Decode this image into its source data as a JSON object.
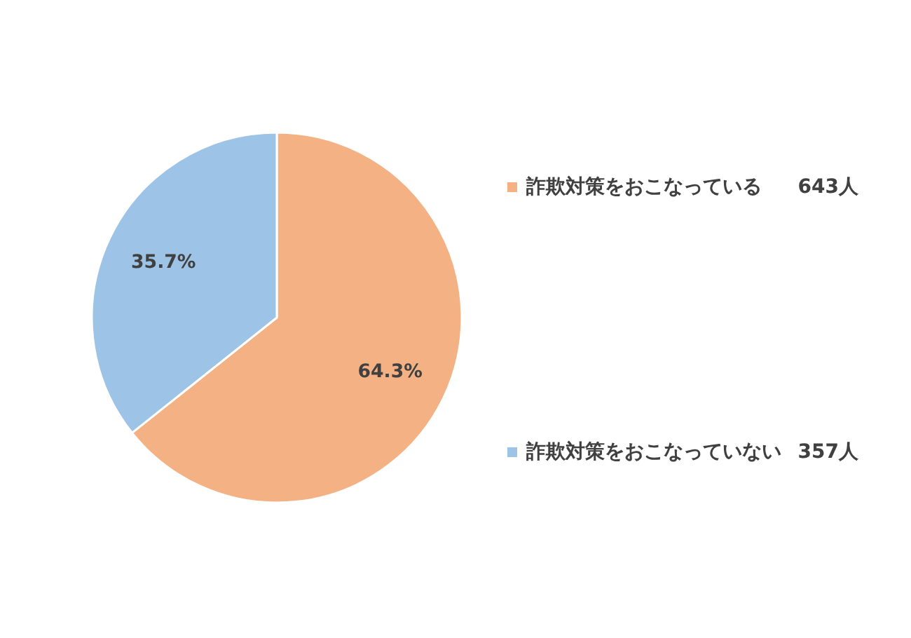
{
  "chart_data": {
    "type": "pie",
    "categories": [
      "詐欺対策をおこなっている",
      "詐欺対策をおこなっていない"
    ],
    "values": [
      64.3,
      35.7
    ],
    "colors": [
      "#f4b183",
      "#9dc3e6"
    ],
    "value_labels": [
      "64.3%",
      "35.7%"
    ],
    "legend": "right",
    "annotations": [
      "643人",
      "357人"
    ]
  }
}
